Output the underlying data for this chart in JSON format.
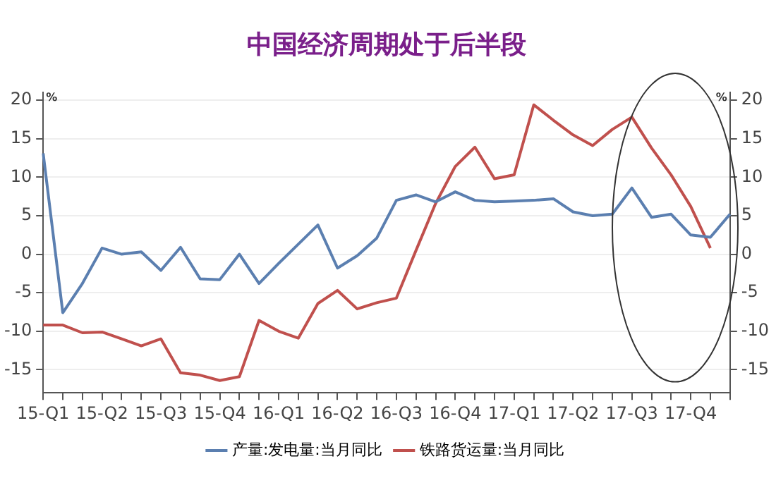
{
  "chart_data": {
    "type": "line",
    "title": "中国经济周期处于后半段",
    "ylabel": "%",
    "y2label": "%",
    "categories": [
      "15-Q1",
      null,
      null,
      "15-Q2",
      null,
      null,
      "15-Q3",
      null,
      null,
      "15-Q4",
      null,
      null,
      "16-Q1",
      null,
      null,
      "16-Q2",
      null,
      null,
      "16-Q3",
      null,
      null,
      "16-Q4",
      null,
      null,
      "17-Q1",
      null,
      null,
      "17-Q2",
      null,
      null,
      "17-Q3",
      null,
      null,
      "17-Q4",
      null,
      null
    ],
    "series": [
      {
        "name": "产量:发电量:当月同比",
        "color": "#5b7fb0",
        "values": [
          13.1,
          -7.6,
          -3.8,
          0.8,
          0,
          0.3,
          -2.1,
          0.9,
          -3.2,
          -3.3,
          0,
          -3.8,
          -1.2,
          1.3,
          3.8,
          -1.8,
          -0.2,
          2.1,
          7.0,
          7.7,
          6.8,
          8.1,
          7.0,
          6.8,
          6.9,
          7.0,
          7.2,
          5.5,
          5.0,
          5.2,
          8.6,
          4.8,
          5.2,
          2.5,
          2.2,
          5.2
        ]
      },
      {
        "name": "铁路货运量:当月同比",
        "color": "#c0504d",
        "values": [
          -9.2,
          -9.2,
          -10.2,
          -10.1,
          -11.0,
          -11.9,
          -11.0,
          -15.4,
          -15.7,
          -16.4,
          -15.9,
          -8.6,
          -10.0,
          -10.9,
          -6.4,
          -4.7,
          -7.1,
          -6.3,
          -5.7,
          0.5,
          6.6,
          11.4,
          13.9,
          9.8,
          10.3,
          19.4,
          17.4,
          15.5,
          14.1,
          16.2,
          17.8,
          13.8,
          10.3,
          6.2,
          0.8,
          null
        ]
      }
    ],
    "ylim": [
      -18,
      21
    ],
    "yticks": [
      -15,
      -10,
      -5,
      0,
      5,
      10,
      15,
      20
    ],
    "y2lim": [
      -18,
      21
    ],
    "y2ticks": [
      -15,
      -10,
      -5,
      0,
      5,
      10,
      15,
      20
    ],
    "grid": "y",
    "legend": "bottom",
    "marker": "none",
    "line_style": "solid"
  }
}
